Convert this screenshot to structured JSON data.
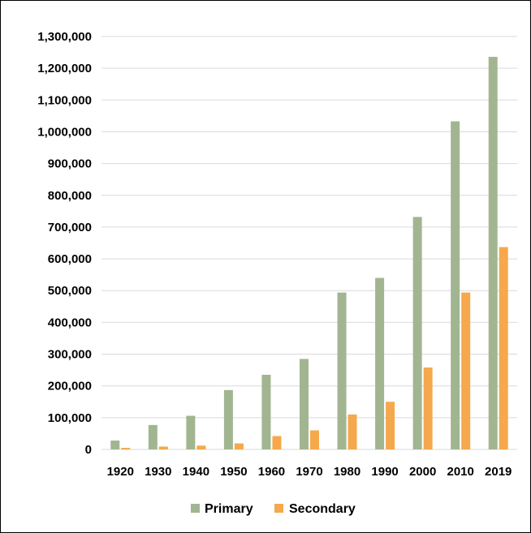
{
  "chart_data": {
    "type": "bar",
    "title": "",
    "xlabel": "",
    "ylabel": "",
    "categories": [
      "1920",
      "1930",
      "1940",
      "1950",
      "1960",
      "1970",
      "1980",
      "1990",
      "2000",
      "2010",
      "2019"
    ],
    "series": [
      {
        "name": "Primary",
        "color": "#a2b591",
        "values": [
          28000,
          77000,
          106000,
          187000,
          235000,
          285000,
          494000,
          540000,
          732000,
          1033000,
          1236000
        ]
      },
      {
        "name": "Secondary",
        "color": "#f5a84c",
        "values": [
          5000,
          9000,
          12000,
          19000,
          42000,
          60000,
          110000,
          150000,
          258000,
          494000,
          637000
        ]
      }
    ],
    "ylim": [
      0,
      1300000
    ],
    "yticks": [
      0,
      100000,
      200000,
      300000,
      400000,
      500000,
      600000,
      700000,
      800000,
      900000,
      1000000,
      1100000,
      1200000,
      1300000
    ],
    "ytick_labels": [
      "0",
      "100,000",
      "200,000",
      "300,000",
      "400,000",
      "500,000",
      "600,000",
      "700,000",
      "800,000",
      "900,000",
      "1,000,000",
      "1,100,000",
      "1,200,000",
      "1,300,000"
    ],
    "grid": true,
    "grid_color": "#d9d9d9",
    "legend": "bottom"
  }
}
